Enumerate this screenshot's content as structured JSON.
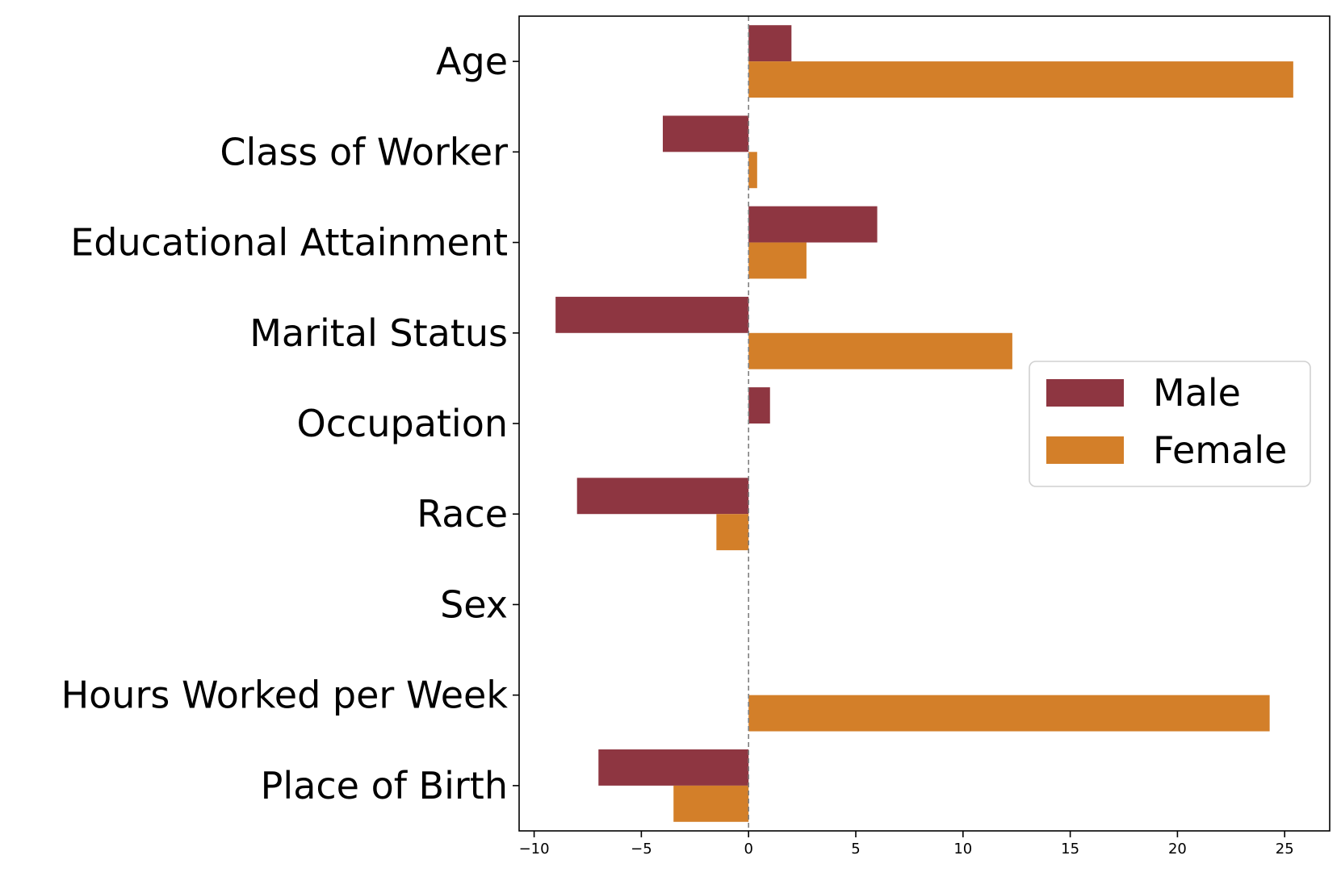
{
  "chart_data": {
    "type": "bar",
    "orientation": "horizontal",
    "categories": [
      "Age",
      "Class of Worker",
      "Educational Attainment",
      "Marital Status",
      "Occupation",
      "Race",
      "Sex",
      "Hours Worked per Week",
      "Place of Birth"
    ],
    "series": [
      {
        "name": "Male",
        "color": "#8e3641",
        "values": [
          2.0,
          -4.0,
          6.0,
          -9.0,
          1.0,
          -8.0,
          0.0,
          0.0,
          -7.0
        ]
      },
      {
        "name": "Female",
        "color": "#d37f29",
        "values": [
          25.4,
          0.4,
          2.7,
          12.3,
          0.0,
          -1.5,
          0.0,
          24.3,
          -3.5
        ]
      }
    ],
    "xlim": [
      -10.7,
      27.1
    ],
    "xticks": [
      -10,
      -5,
      0,
      5,
      10,
      15,
      20,
      25
    ],
    "xtick_labels": [
      "−10",
      "−5",
      "0",
      "5",
      "10",
      "15",
      "20",
      "25"
    ],
    "reference_line": {
      "x": 0,
      "style": "dashed",
      "color": "#808080"
    },
    "legend_position": "center-right",
    "grid": false
  }
}
